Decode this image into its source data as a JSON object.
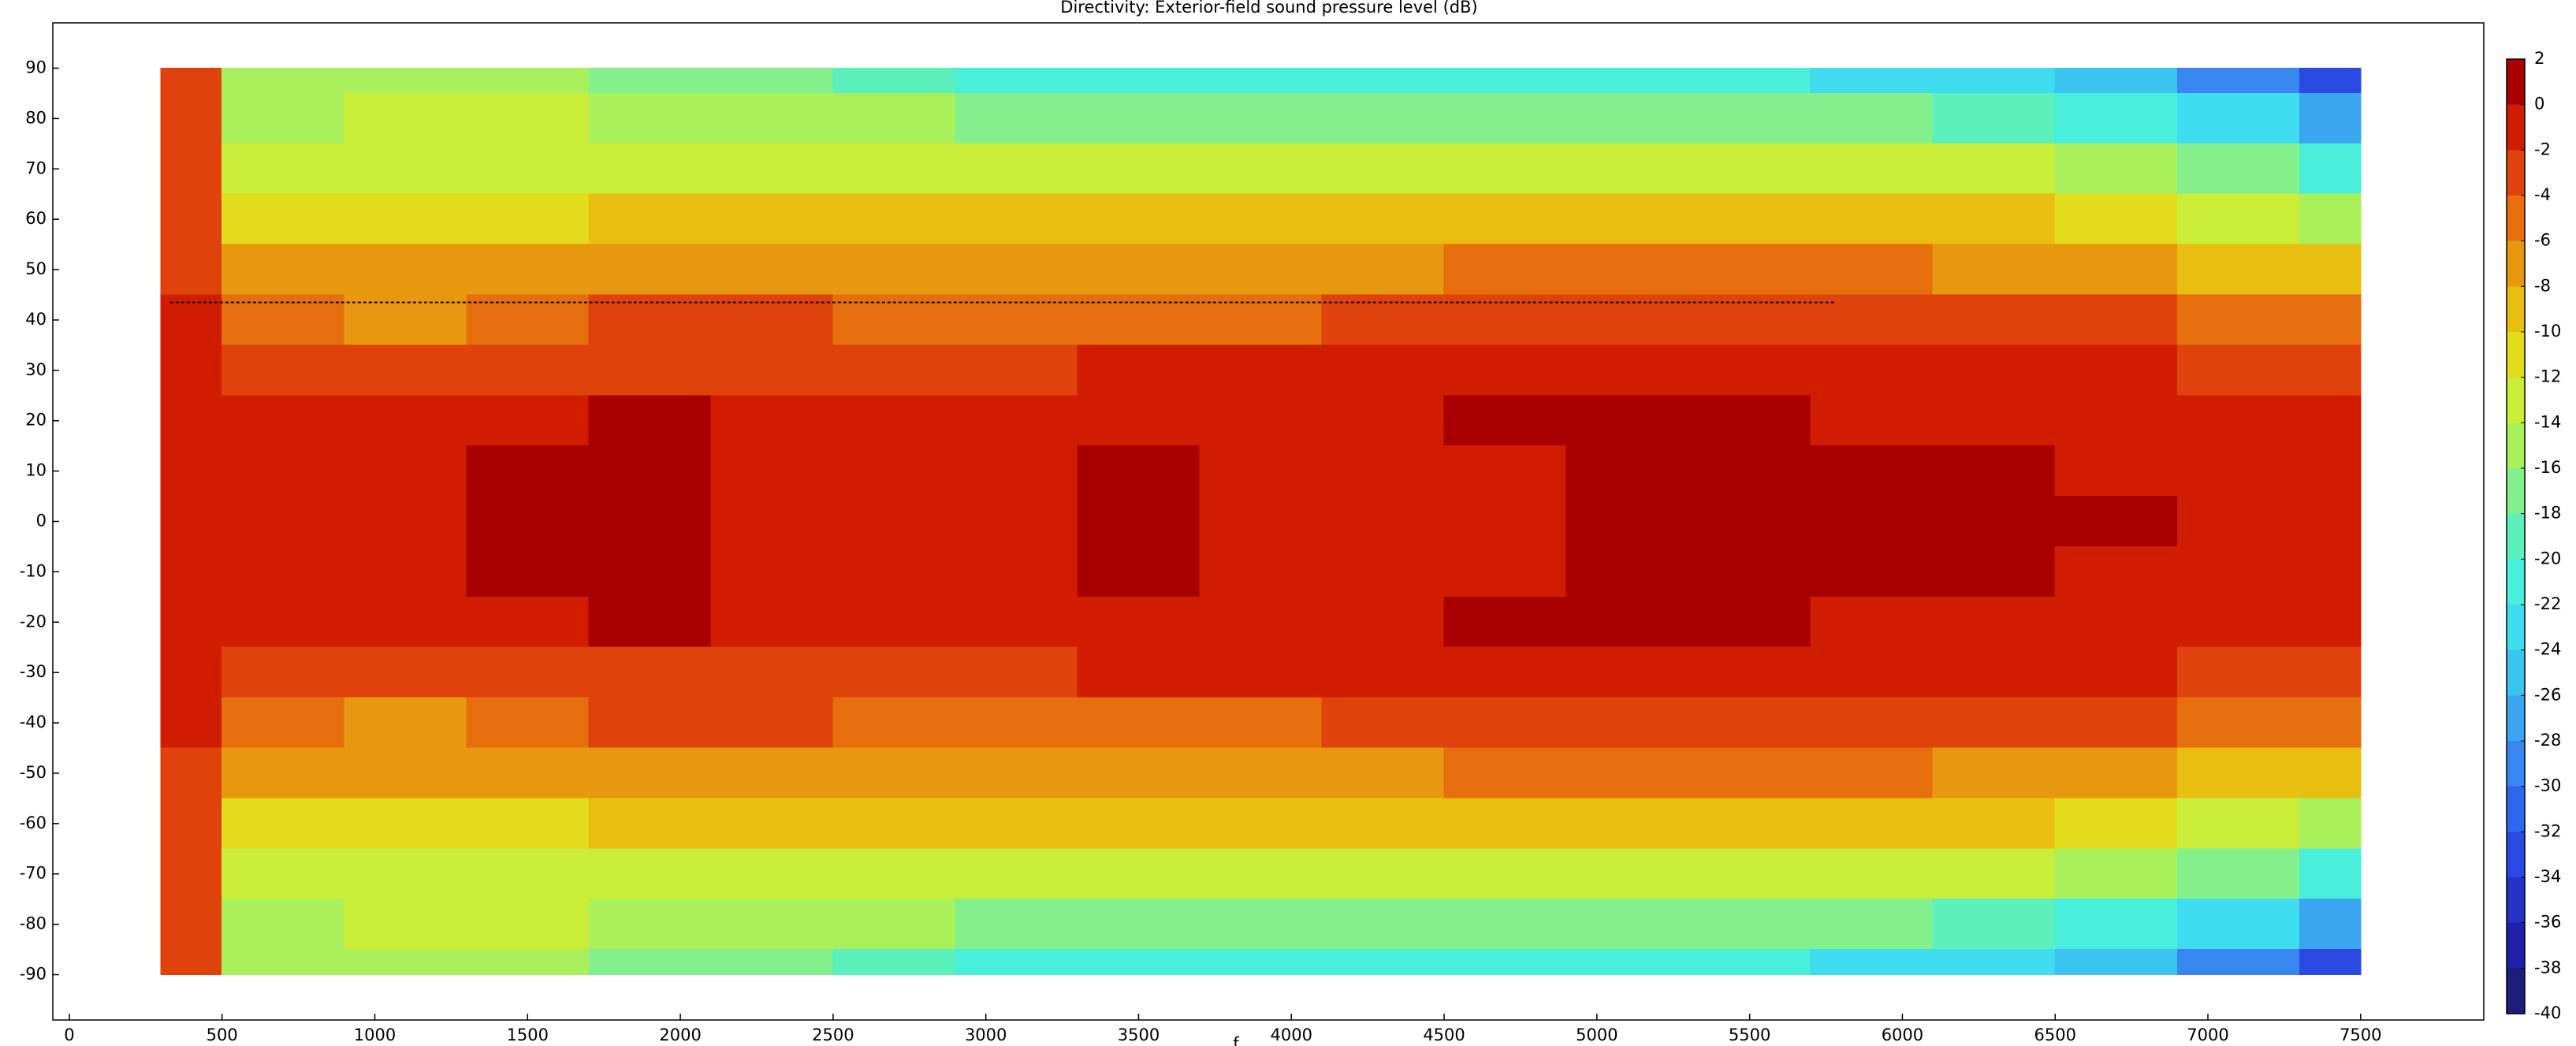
{
  "chart_data": {
    "type": "contour",
    "title": "Directivity: Exterior-field sound pressure level (dB)",
    "xlabel": "f",
    "x": [
      300,
      700,
      1100,
      1500,
      1900,
      2300,
      2700,
      3100,
      3500,
      3900,
      4300,
      4700,
      5100,
      5500,
      5900,
      6300,
      6700,
      7100,
      7500
    ],
    "y": [
      90,
      80,
      70,
      60,
      50,
      40,
      30,
      20,
      10,
      0,
      -10,
      -20,
      -30,
      -40,
      -50,
      -60,
      -70,
      -80,
      -90
    ],
    "z": [
      [
        -3,
        -15,
        -16,
        -15,
        -17,
        -18,
        -19,
        -21,
        -22,
        -22,
        -22,
        -21,
        -22,
        -22,
        -23,
        -24,
        -26,
        -30,
        -34
      ],
      [
        -3,
        -15,
        -14,
        -13,
        -15,
        -15,
        -16,
        -17,
        -17,
        -17,
        -18,
        -17,
        -17,
        -17,
        -18,
        -19,
        -21,
        -24,
        -27
      ],
      [
        -3,
        -14,
        -13,
        -14,
        -13,
        -13,
        -13,
        -13,
        -13,
        -14,
        -14,
        -13,
        -13,
        -13,
        -13,
        -14,
        -15,
        -18,
        -21
      ],
      [
        -3,
        -11,
        -11,
        -11,
        -10,
        -10,
        -10,
        -10,
        -10,
        -10,
        -10,
        -9,
        -9,
        -9,
        -9,
        -10,
        -11,
        -13,
        -15
      ],
      [
        -3,
        -7,
        -8,
        -8,
        -7,
        -7,
        -7,
        -7,
        -7,
        -7,
        -7,
        -6,
        -6,
        -6,
        -6,
        -7,
        -7,
        -9,
        -10
      ],
      [
        -2,
        -5,
        -7,
        -5,
        -4,
        -4,
        -5,
        -5,
        -5,
        -5,
        -4,
        -4,
        -3,
        -3,
        -3,
        -4,
        -4,
        -5,
        -6
      ],
      [
        -1,
        -3,
        -4,
        -3,
        -3,
        -3,
        -3,
        -3,
        -2,
        -2,
        -2,
        -2,
        -1,
        -1,
        -2,
        -2,
        -2,
        -3,
        -4
      ],
      [
        -1,
        -2,
        -2,
        -1,
        1,
        -2,
        -2,
        -1,
        -1,
        -1,
        -1,
        1,
        1,
        1,
        -1,
        -1,
        -1,
        -2,
        -2
      ],
      [
        -1,
        -1,
        -1,
        1,
        1,
        -1,
        -1,
        -1,
        1,
        -1,
        -1,
        -1,
        1,
        1,
        1,
        1,
        -1,
        -1,
        -1
      ],
      [
        -1,
        -1,
        -1,
        1,
        1,
        -1,
        -1,
        -1,
        1,
        -1,
        -1,
        -1,
        1,
        1,
        1,
        1,
        1,
        -1,
        -1
      ],
      [
        -1,
        -1,
        -1,
        1,
        1,
        -1,
        -1,
        -1,
        1,
        -1,
        -1,
        -1,
        1,
        1,
        1,
        1,
        -1,
        -1,
        -1
      ],
      [
        -1,
        -2,
        -2,
        -1,
        1,
        -2,
        -2,
        -1,
        -1,
        -1,
        -1,
        1,
        1,
        1,
        -1,
        -1,
        -1,
        -2,
        -2
      ],
      [
        -1,
        -3,
        -4,
        -3,
        -3,
        -3,
        -3,
        -3,
        -2,
        -2,
        -2,
        -2,
        -1,
        -1,
        -2,
        -2,
        -2,
        -3,
        -4
      ],
      [
        -2,
        -5,
        -7,
        -5,
        -4,
        -4,
        -5,
        -5,
        -5,
        -5,
        -4,
        -4,
        -3,
        -3,
        -3,
        -4,
        -4,
        -5,
        -6
      ],
      [
        -3,
        -7,
        -8,
        -8,
        -7,
        -7,
        -7,
        -7,
        -7,
        -7,
        -7,
        -6,
        -6,
        -6,
        -6,
        -7,
        -7,
        -9,
        -10
      ],
      [
        -3,
        -11,
        -11,
        -11,
        -10,
        -10,
        -10,
        -10,
        -10,
        -10,
        -10,
        -9,
        -9,
        -9,
        -9,
        -10,
        -11,
        -13,
        -15
      ],
      [
        -3,
        -14,
        -13,
        -14,
        -13,
        -13,
        -13,
        -13,
        -13,
        -14,
        -14,
        -13,
        -13,
        -13,
        -13,
        -14,
        -15,
        -18,
        -21
      ],
      [
        -3,
        -15,
        -14,
        -13,
        -15,
        -15,
        -16,
        -17,
        -17,
        -17,
        -18,
        -17,
        -17,
        -17,
        -18,
        -19,
        -21,
        -24,
        -27
      ],
      [
        -3,
        -15,
        -16,
        -15,
        -17,
        -18,
        -19,
        -21,
        -22,
        -22,
        -22,
        -21,
        -22,
        -22,
        -23,
        -24,
        -26,
        -30,
        -34
      ]
    ],
    "xlim": [
      -54,
      7903
    ],
    "ylim": [
      -99,
      99
    ],
    "xticks": [
      0,
      500,
      1000,
      1500,
      2000,
      2500,
      3000,
      3500,
      4000,
      4500,
      5000,
      5500,
      6000,
      6500,
      7000,
      7500
    ],
    "yticks": [
      90,
      80,
      70,
      60,
      50,
      40,
      30,
      20,
      10,
      0,
      -10,
      -20,
      -30,
      -40,
      -50,
      -60,
      -70,
      -80,
      -90
    ],
    "clim": [
      -40,
      2
    ],
    "cticks": [
      2,
      0,
      -2,
      -4,
      -6,
      -8,
      -10,
      -12,
      -14,
      -16,
      -18,
      -20,
      -22,
      -24,
      -26,
      -28,
      -30,
      -32,
      -34,
      -36,
      -38,
      -40
    ],
    "colors": [
      "#1c1c7a",
      "#2020a6",
      "#2432c8",
      "#2a48e2",
      "#2f66ee",
      "#3886f0",
      "#3aa6f0",
      "#3cc4f0",
      "#40dcf0",
      "#48f0dc",
      "#5cf0bc",
      "#84f08c",
      "#aaf05a",
      "#caee38",
      "#e2dc1c",
      "#e8be10",
      "#e8980e",
      "#e66e0c",
      "#e0420c",
      "#d01c00",
      "#a80000"
    ],
    "dashed_line": {
      "x": [
        330,
        5780
      ],
      "y": 43.5
    }
  }
}
